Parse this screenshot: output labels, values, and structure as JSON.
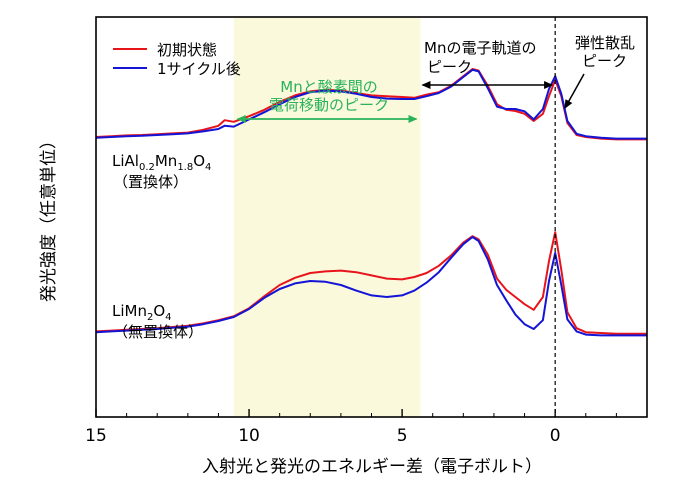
{
  "chart_data": {
    "type": "line",
    "xlabel": "入射光と発光のエネルギー差（電子ボルト）",
    "ylabel": "発光強度（任意単位）",
    "xlim": [
      15,
      -3
    ],
    "ylim": [
      0,
      1
    ],
    "x_ticks": [
      15,
      10,
      5,
      0
    ],
    "x_ticklabels": [
      "15",
      "10",
      "5",
      "0"
    ],
    "grid": false,
    "legend": {
      "position": "top-left",
      "entries": [
        {
          "label": "初期状態",
          "color": "#e8141c"
        },
        {
          "label": "1サイクル後",
          "color": "#1414d6"
        }
      ]
    },
    "shaded_region": {
      "x": [
        10.5,
        4.4
      ],
      "color": "#fbf9dc"
    },
    "annotations": {
      "mn_o_peak_line1": "Mnと酸素間の",
      "mn_o_peak_line2": "電荷移動のピーク",
      "mn_orbital_line1": "Mnの電子軌道の",
      "mn_orbital_line2": "ピーク",
      "elastic_line1": "弾性散乱",
      "elastic_line2": "ピーク",
      "sample1_formula": "LiAl0.2Mn1.8O4",
      "sample1_note": "（置換体）",
      "sample2_formula": "LiMn2O4",
      "sample2_note": "（無置換体）"
    },
    "annotation_colors": {
      "mn_o_peak": "#2ab25a",
      "default": "#000000"
    },
    "series": [
      {
        "name": "初期状態",
        "sample": "LiAl0.2Mn1.8O4",
        "color": "#e8141c",
        "x": [
          15,
          14.5,
          14,
          13.5,
          13,
          12.5,
          12,
          11.5,
          11,
          10.8,
          10.5,
          10,
          9.5,
          9,
          8.5,
          8,
          7.5,
          7,
          6.5,
          6,
          5.5,
          5,
          4.6,
          4.2,
          3.8,
          3.4,
          3.0,
          2.7,
          2.5,
          2.2,
          1.9,
          1.6,
          1.3,
          1.0,
          0.7,
          0.4,
          0.2,
          0,
          -0.2,
          -0.4,
          -0.7,
          -1.0,
          -1.5,
          -2.0,
          -2.5,
          -3.0
        ],
        "y": [
          0.7,
          0.702,
          0.704,
          0.705,
          0.707,
          0.709,
          0.711,
          0.718,
          0.728,
          0.742,
          0.738,
          0.752,
          0.768,
          0.788,
          0.804,
          0.814,
          0.818,
          0.816,
          0.81,
          0.804,
          0.802,
          0.8,
          0.798,
          0.806,
          0.812,
          0.828,
          0.852,
          0.87,
          0.866,
          0.828,
          0.782,
          0.768,
          0.765,
          0.758,
          0.74,
          0.758,
          0.802,
          0.843,
          0.802,
          0.735,
          0.705,
          0.7,
          0.696,
          0.694,
          0.694,
          0.694
        ]
      },
      {
        "name": "1サイクル後",
        "sample": "LiAl0.2Mn1.8O4",
        "color": "#1414d6",
        "x": [
          15,
          14.5,
          14,
          13.5,
          13,
          12.5,
          12,
          11.5,
          11,
          10.8,
          10.5,
          10,
          9.5,
          9,
          8.5,
          8,
          7.5,
          7,
          6.5,
          6,
          5.5,
          5,
          4.6,
          4.2,
          3.8,
          3.4,
          3.0,
          2.7,
          2.5,
          2.2,
          1.9,
          1.6,
          1.3,
          1.0,
          0.7,
          0.4,
          0.2,
          0,
          -0.2,
          -0.4,
          -0.7,
          -1.0,
          -1.5,
          -2.0,
          -2.5,
          -3.0
        ],
        "y": [
          0.698,
          0.7,
          0.702,
          0.703,
          0.705,
          0.707,
          0.709,
          0.714,
          0.72,
          0.728,
          0.726,
          0.744,
          0.762,
          0.782,
          0.8,
          0.812,
          0.816,
          0.814,
          0.808,
          0.8,
          0.796,
          0.795,
          0.795,
          0.802,
          0.81,
          0.826,
          0.85,
          0.868,
          0.864,
          0.822,
          0.776,
          0.77,
          0.77,
          0.764,
          0.744,
          0.77,
          0.82,
          0.852,
          0.808,
          0.74,
          0.708,
          0.702,
          0.698,
          0.696,
          0.696,
          0.696
        ]
      },
      {
        "name": "初期状態",
        "sample": "LiMn2O4",
        "color": "#e8141c",
        "x": [
          15,
          14.5,
          14,
          13.5,
          13,
          12.5,
          12,
          11.5,
          11,
          10.5,
          10,
          9.5,
          9,
          8.5,
          8,
          7.5,
          7,
          6.5,
          6,
          5.5,
          5,
          4.6,
          4.2,
          3.8,
          3.4,
          3.0,
          2.7,
          2.5,
          2.2,
          1.9,
          1.6,
          1.3,
          1.0,
          0.7,
          0.4,
          0.2,
          0,
          -0.2,
          -0.4,
          -0.7,
          -1.0,
          -1.5,
          -2.0,
          -2.5,
          -3.0
        ],
        "y": [
          0.214,
          0.216,
          0.218,
          0.22,
          0.222,
          0.225,
          0.228,
          0.234,
          0.242,
          0.252,
          0.272,
          0.302,
          0.33,
          0.348,
          0.36,
          0.364,
          0.366,
          0.362,
          0.354,
          0.346,
          0.344,
          0.35,
          0.36,
          0.378,
          0.404,
          0.436,
          0.452,
          0.444,
          0.406,
          0.346,
          0.318,
          0.3,
          0.282,
          0.268,
          0.3,
          0.39,
          0.462,
          0.368,
          0.262,
          0.222,
          0.212,
          0.21,
          0.208,
          0.208,
          0.208
        ]
      },
      {
        "name": "1サイクル後",
        "sample": "LiMn2O4",
        "color": "#1414d6",
        "x": [
          15,
          14.5,
          14,
          13.5,
          13,
          12.5,
          12,
          11.5,
          11,
          10.5,
          10,
          9.5,
          9,
          8.5,
          8,
          7.5,
          7,
          6.5,
          6,
          5.5,
          5,
          4.6,
          4.2,
          3.8,
          3.4,
          3.0,
          2.7,
          2.5,
          2.2,
          1.9,
          1.6,
          1.3,
          1.0,
          0.7,
          0.4,
          0.2,
          0,
          -0.2,
          -0.4,
          -0.7,
          -1.0,
          -1.5,
          -2.0,
          -2.5,
          -3.0
        ],
        "y": [
          0.212,
          0.214,
          0.216,
          0.218,
          0.22,
          0.223,
          0.226,
          0.232,
          0.24,
          0.25,
          0.27,
          0.298,
          0.32,
          0.334,
          0.34,
          0.338,
          0.33,
          0.316,
          0.304,
          0.3,
          0.304,
          0.316,
          0.336,
          0.362,
          0.398,
          0.432,
          0.45,
          0.44,
          0.394,
          0.33,
          0.292,
          0.256,
          0.232,
          0.22,
          0.242,
          0.34,
          0.41,
          0.33,
          0.244,
          0.214,
          0.206,
          0.204,
          0.204,
          0.204,
          0.204
        ]
      }
    ]
  }
}
